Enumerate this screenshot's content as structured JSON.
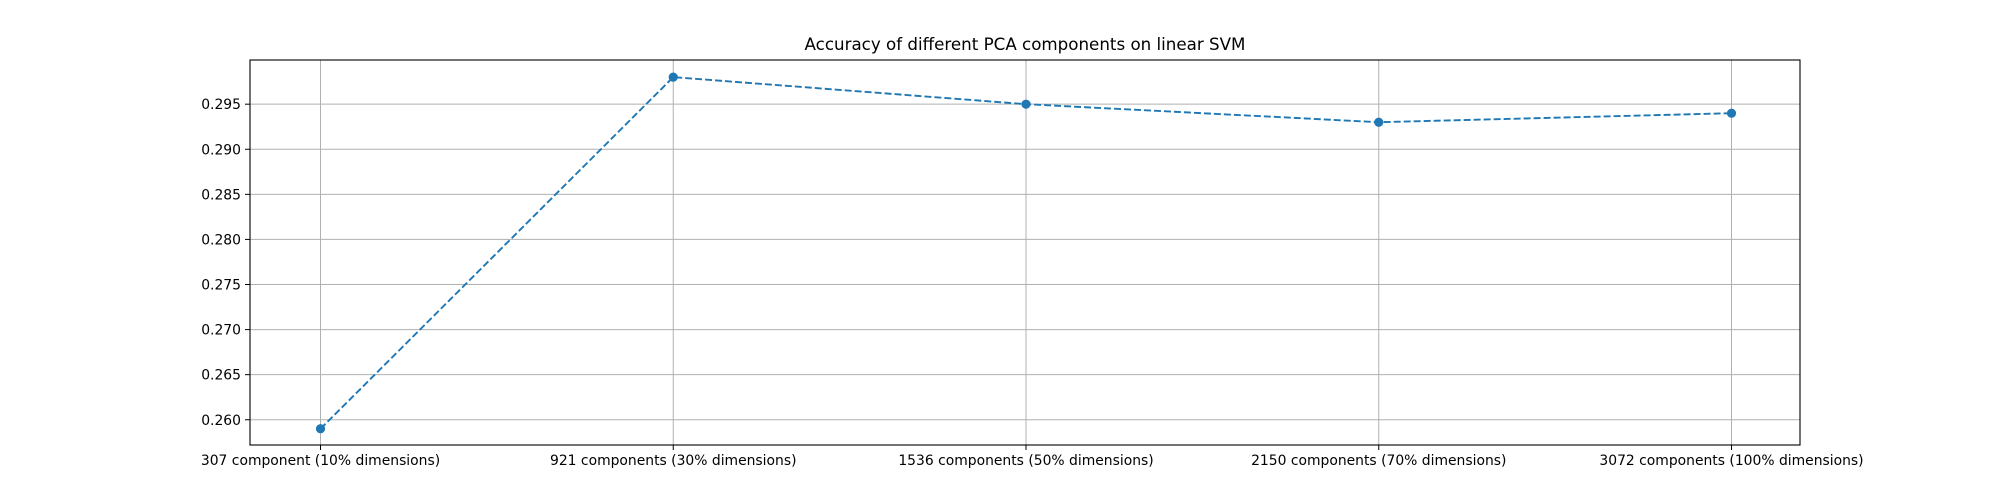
{
  "chart_data": {
    "type": "line",
    "title": "Accuracy of different PCA components on linear SVM",
    "xlabel": "",
    "ylabel": "",
    "categories": [
      "307 component (10% dimensions)",
      "921 components (30% dimensions)",
      "1536 components (50% dimensions)",
      "2150 components (70% dimensions)",
      "3072 components (100% dimensions)"
    ],
    "series": [
      {
        "values": [
          0.259,
          0.298,
          0.295,
          0.293,
          0.294
        ],
        "color": "#1f77b4",
        "linestyle": "dashed",
        "marker": "circle"
      }
    ],
    "ylim": [
      0.2572,
      0.2999
    ],
    "yticks": [
      0.26,
      0.265,
      0.27,
      0.275,
      0.28,
      0.285,
      0.29,
      0.295
    ],
    "ytick_labels": [
      "0.260",
      "0.265",
      "0.270",
      "0.275",
      "0.280",
      "0.285",
      "0.290",
      "0.295"
    ],
    "grid": true,
    "legend": "none"
  }
}
